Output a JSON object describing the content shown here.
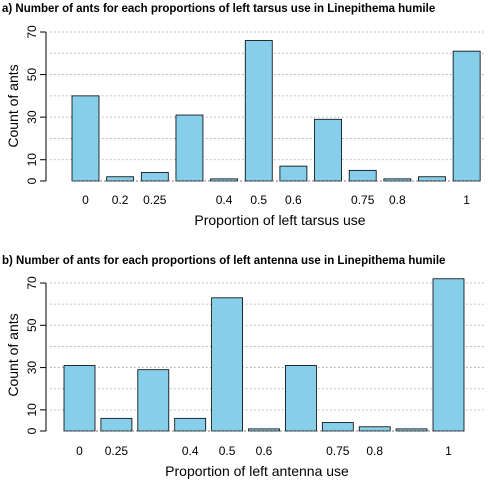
{
  "colors": {
    "bar_fill": "#87CEEB",
    "bar_stroke": "#000000",
    "grid": "#9a9a9a",
    "axis": "#000000",
    "text": "#000000"
  },
  "chart_data": [
    {
      "type": "bar",
      "title": "a) Number of ants for each proportions of left tarsus use in Linepithema humile",
      "xlabel": "Proportion of left tarsus use",
      "ylabel": "Count of ants",
      "ylim": [
        0,
        70
      ],
      "yticks": [
        0,
        10,
        30,
        50,
        70
      ],
      "grid": "horizontal dotted",
      "categories": [
        "0",
        "0.2",
        "0.25",
        "",
        "0.4",
        "0.5",
        "0.6",
        "",
        "0.75",
        "0.8",
        "",
        "1"
      ],
      "values": [
        40,
        2,
        4,
        31,
        1,
        66,
        7,
        29,
        5,
        1,
        2,
        61
      ]
    },
    {
      "type": "bar",
      "title": "b) Number of ants for each proportions of left antenna use in Linepithema humile",
      "xlabel": "Proportion of left antenna use",
      "ylabel": "Count of ants",
      "ylim": [
        0,
        70
      ],
      "yticks": [
        0,
        10,
        30,
        50,
        70
      ],
      "grid": "horizontal dotted",
      "categories": [
        "0",
        "0.25",
        "",
        "0.4",
        "0.5",
        "0.6",
        "",
        "0.75",
        "0.8",
        "",
        "1"
      ],
      "values": [
        31,
        6,
        29,
        6,
        63,
        1,
        31,
        4,
        2,
        1,
        72
      ]
    }
  ]
}
